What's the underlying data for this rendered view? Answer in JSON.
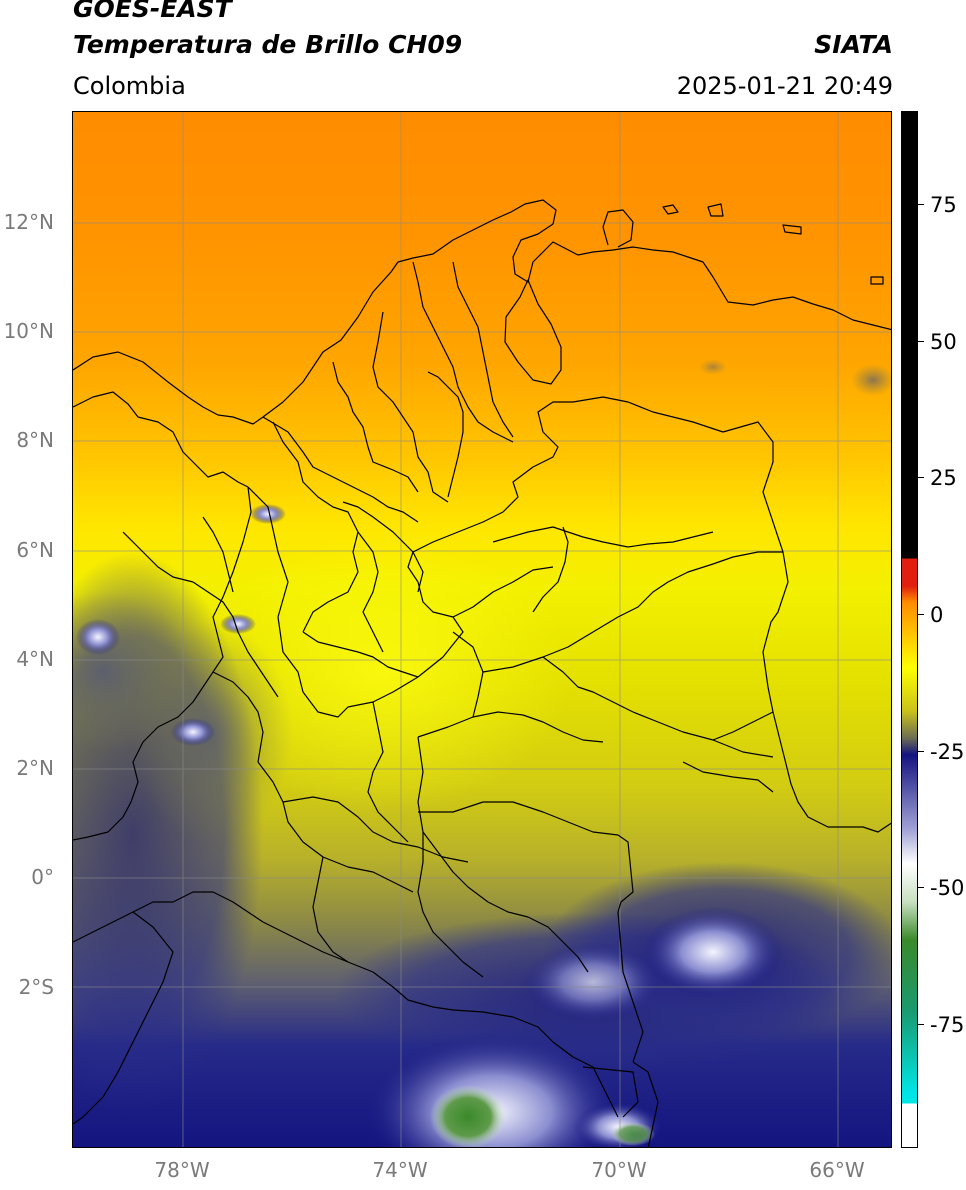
{
  "header": {
    "title_line1": "GOES-EAST",
    "title_line2": "Temperatura de Brillo CH09",
    "region": "Colombia",
    "organization": "SIATA",
    "timestamp": "2025-01-21 20:49"
  },
  "map": {
    "latitude_labels": [
      "12°N",
      "10°N",
      "8°N",
      "6°N",
      "4°N",
      "2°N",
      "0°",
      "2°S"
    ],
    "longitude_labels": [
      "78°W",
      "74°W",
      "70°W",
      "66°W"
    ],
    "extent": {
      "lon_min": -80,
      "lon_max": -65,
      "lat_min": -5,
      "lat_max": 14
    }
  },
  "colorbar": {
    "tick_labels": [
      "75",
      "50",
      "25",
      "0",
      "-25",
      "-50",
      "-75"
    ],
    "tick_values": [
      75,
      50,
      25,
      0,
      -25,
      -50,
      -75
    ],
    "range": [
      -100,
      90
    ],
    "colors": {
      "black": "#000000",
      "red": "#e01f10",
      "orange": "#ff8c00",
      "yellow": "#ffff00",
      "olive": "#c9c21a",
      "gray": "#6b6b55",
      "navy": "#141480",
      "white": "#ffffff",
      "green": "#3a8a2a",
      "cyan": "#00e5e5"
    }
  }
}
